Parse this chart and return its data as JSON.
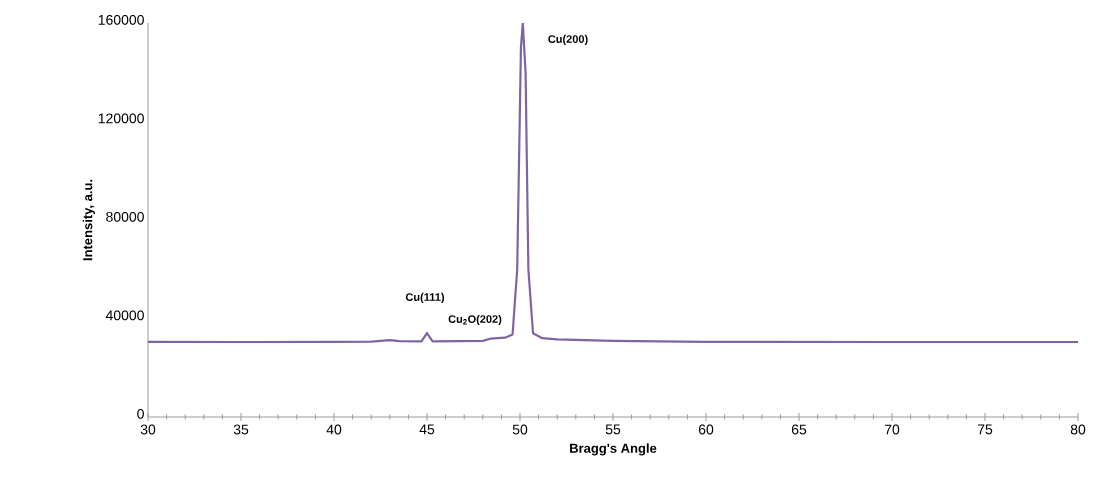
{
  "chart_data": {
    "type": "line",
    "xlabel": "Bragg's Angle",
    "ylabel": "Intensity, a.u.",
    "series": [
      {
        "color": "#8064a2",
        "x": [
          30,
          35,
          40,
          42,
          43,
          43.5,
          44.7,
          45.0,
          45.3,
          48,
          48.4,
          49.2,
          49.6,
          49.85,
          50.05,
          50.15,
          50.3,
          50.45,
          50.7,
          51.2,
          52,
          55,
          60,
          70,
          80
        ],
        "values": [
          30500,
          30400,
          30500,
          30600,
          31200,
          30800,
          30700,
          34100,
          30700,
          30900,
          31800,
          32200,
          33500,
          60000,
          150000,
          160000,
          140000,
          60000,
          34000,
          32000,
          31500,
          30900,
          30500,
          30400,
          30400
        ]
      }
    ],
    "xlim": [
      30,
      80
    ],
    "xticks": [
      30,
      35,
      40,
      45,
      50,
      55,
      60,
      65,
      70,
      75,
      80
    ],
    "ylim": [
      0,
      160000
    ],
    "yticks": [
      0,
      40000,
      80000,
      120000,
      160000
    ],
    "grid": false,
    "marker": "none",
    "line_style": "solid",
    "annotations": [
      "Cu(111)",
      "Cu$_{2}$O(202)",
      "Cu(200)"
    ]
  }
}
